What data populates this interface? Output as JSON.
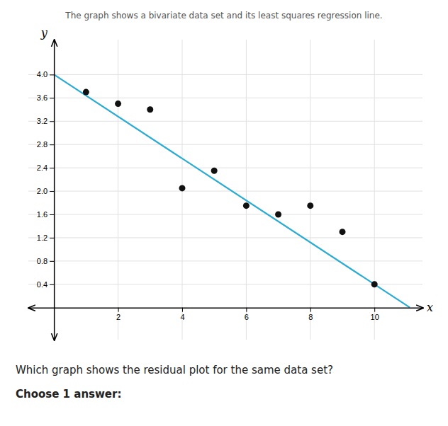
{
  "chart_data": {
    "type": "scatter",
    "title": "The graph shows a bivariate data set and its least squares regression line.",
    "subtitle": "Which graph shows the residual plot for the same data set?",
    "annotations": [
      "Choose 1 answer:"
    ],
    "xlabel": "x",
    "ylabel": "y",
    "series": [
      {
        "type": "line",
        "color": "#29ABD4",
        "x": [
          0,
          11.1
        ],
        "values": [
          4.0,
          0.004
        ]
      },
      {
        "type": "scatter",
        "color": "#111111",
        "x": [
          1,
          2,
          3,
          5,
          4,
          6,
          7,
          8,
          9,
          10
        ],
        "values": [
          3.7,
          3.5,
          3.4,
          2.35,
          2.05,
          1.75,
          1.6,
          1.75,
          1.3,
          0.4
        ]
      }
    ],
    "xlim": [
      -0.8,
      11.5
    ],
    "ylim": [
      -0.55,
      4.6
    ],
    "xticks": [
      2,
      4,
      6,
      8,
      10
    ],
    "yticks": [
      0.4,
      0.8,
      1.2,
      1.6,
      {
        "value": 2.0,
        "label": "2.0"
      },
      2.4,
      2.8,
      3.2,
      3.6,
      {
        "value": 4.0,
        "label": "4.0"
      }
    ],
    "grid": true
  }
}
